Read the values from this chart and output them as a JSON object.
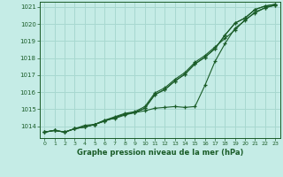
{
  "title": "Graphe pression niveau de la mer (hPa)",
  "background_color": "#c5ece6",
  "grid_color": "#a8d8d0",
  "line_color": "#1a5c28",
  "text_color": "#1a5c28",
  "ylim": [
    1013.3,
    1021.3
  ],
  "xlim": [
    -0.5,
    23.5
  ],
  "yticks": [
    1014,
    1015,
    1016,
    1017,
    1018,
    1019,
    1020,
    1021
  ],
  "xticks": [
    0,
    1,
    2,
    3,
    4,
    5,
    6,
    7,
    8,
    9,
    10,
    11,
    12,
    13,
    14,
    15,
    16,
    17,
    18,
    19,
    20,
    21,
    22,
    23
  ],
  "series": [
    [
      1013.65,
      1013.75,
      1013.65,
      1013.85,
      1013.95,
      1014.1,
      1014.3,
      1014.5,
      1014.7,
      1014.8,
      1015.05,
      1015.85,
      1016.15,
      1016.65,
      1017.05,
      1017.65,
      1018.05,
      1018.55,
      1019.35,
      1020.05,
      1020.35,
      1020.85,
      1021.05,
      1021.15
    ],
    [
      1013.65,
      1013.75,
      1013.65,
      1013.85,
      1013.95,
      1014.1,
      1014.3,
      1014.5,
      1014.7,
      1014.8,
      1015.05,
      1015.85,
      1016.15,
      1016.65,
      1017.05,
      1017.65,
      1018.05,
      1018.55,
      1019.35,
      1020.05,
      1020.35,
      1020.85,
      1021.05,
      1021.15
    ],
    [
      1013.65,
      1013.75,
      1013.65,
      1013.85,
      1013.95,
      1014.1,
      1014.35,
      1014.55,
      1014.75,
      1014.85,
      1015.15,
      1015.95,
      1016.25,
      1016.75,
      1017.15,
      1017.75,
      1018.15,
      1018.65,
      1019.15,
      1019.65,
      1020.25,
      1020.65,
      1020.95,
      1021.1
    ],
    [
      1013.65,
      1013.75,
      1013.65,
      1013.85,
      1014.05,
      1014.1,
      1014.35,
      1014.45,
      1014.65,
      1014.8,
      1014.9,
      1015.05,
      1015.1,
      1015.15,
      1015.1,
      1015.15,
      1016.4,
      1017.8,
      1018.85,
      1019.75,
      1020.2,
      1020.7,
      1020.95,
      1021.1
    ]
  ]
}
